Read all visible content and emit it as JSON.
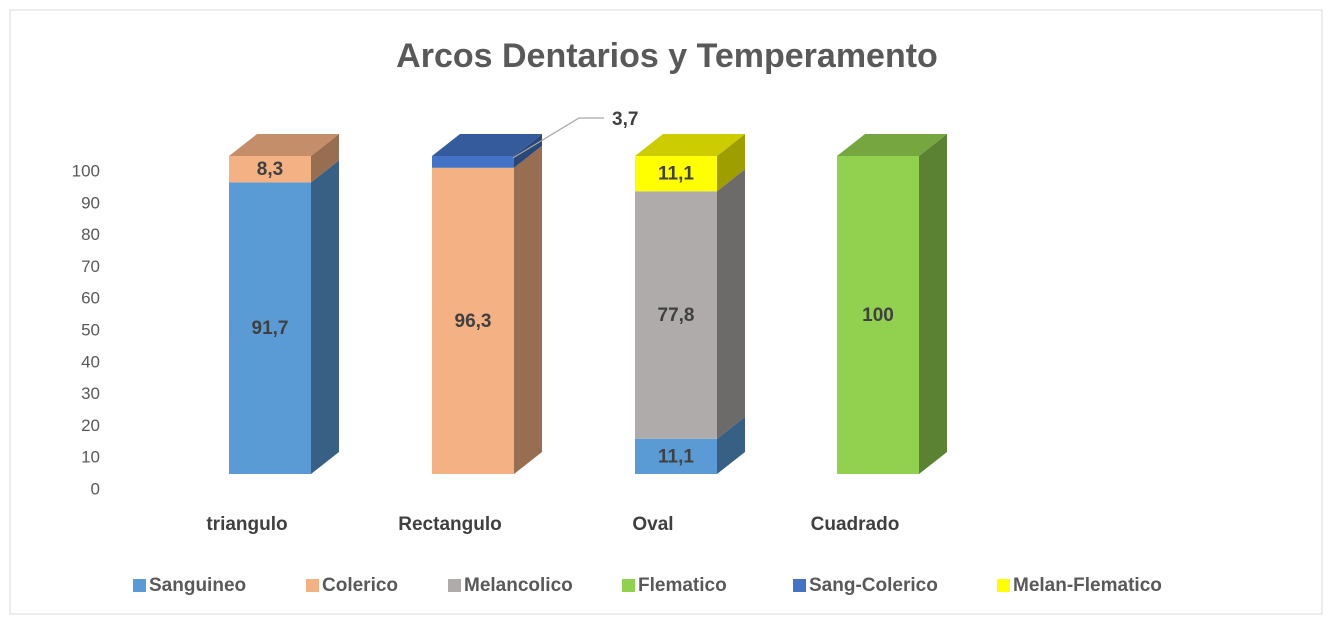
{
  "chart_data": {
    "type": "bar3d_stacked",
    "title": "Arcos Dentarios y Temperamento",
    "categories": [
      "triangulo",
      "Rectangulo",
      "Oval",
      "Cuadrado"
    ],
    "series": [
      {
        "name": "Sanguineo",
        "color": "#5b9bd5",
        "values": [
          91.7,
          null,
          11.1,
          null
        ],
        "value_labels": [
          "91,7",
          null,
          "11,1",
          null
        ]
      },
      {
        "name": "Colerico",
        "color": "#f4b183",
        "values": [
          8.3,
          96.3,
          null,
          null
        ],
        "value_labels": [
          "8,3",
          "96,3",
          null,
          null
        ]
      },
      {
        "name": "Melancolico",
        "color": "#afabab",
        "values": [
          null,
          null,
          77.8,
          null
        ],
        "value_labels": [
          null,
          null,
          "77,8",
          null
        ]
      },
      {
        "name": "Flematico",
        "color": "#92d050",
        "values": [
          null,
          null,
          null,
          100
        ]
      },
      {
        "name": "Sang-Colerico",
        "color": "#4472c4",
        "values": [
          null,
          3.7,
          null,
          null
        ],
        "value_labels": [
          null,
          "3,7",
          null,
          null
        ]
      },
      {
        "name": "Melan-Flematico",
        "color": "#ffff00",
        "values": [
          null,
          null,
          11.1,
          null
        ],
        "value_labels": [
          null,
          null,
          "11,1",
          null
        ]
      }
    ],
    "ylim": [
      0,
      100
    ],
    "yticks": [
      0,
      10,
      20,
      30,
      40,
      50,
      60,
      70,
      80,
      90,
      100
    ],
    "legend": "bottom"
  }
}
